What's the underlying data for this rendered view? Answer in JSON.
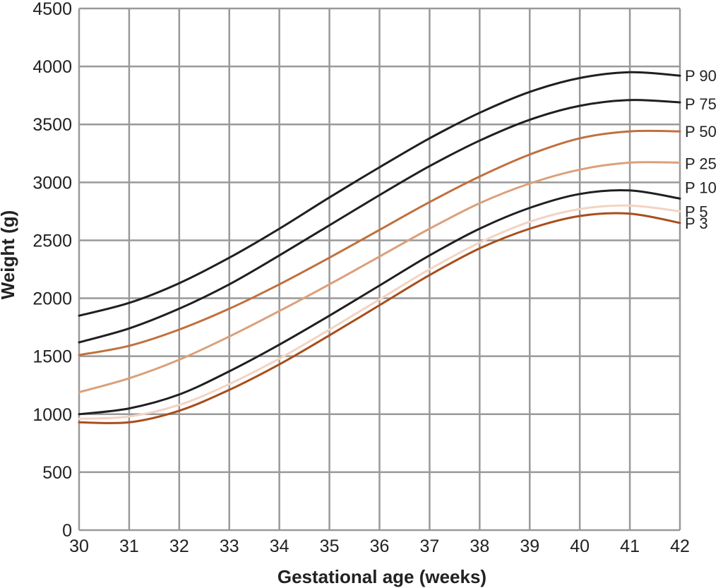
{
  "chart_data": {
    "type": "line",
    "title": "",
    "xlabel": "Gestational age (weeks)",
    "ylabel": "Weight (g)",
    "xlim": [
      30,
      42
    ],
    "ylim": [
      0,
      4500
    ],
    "x_ticks": [
      "30",
      "31",
      "32",
      "33",
      "34",
      "35",
      "36",
      "37",
      "38",
      "39",
      "40",
      "41",
      "42"
    ],
    "y_ticks": [
      "0",
      "500",
      "1000",
      "1500",
      "2000",
      "2500",
      "3000",
      "3500",
      "4000",
      "4500"
    ],
    "grid": true,
    "legend": "direct labels at right end of lines",
    "x": [
      30,
      31,
      32,
      33,
      34,
      35,
      36,
      37,
      38,
      39,
      40,
      41,
      42
    ],
    "series": [
      {
        "name": "P 90",
        "color": "#1f1f1f",
        "values": [
          1850,
          1960,
          2130,
          2350,
          2600,
          2870,
          3130,
          3380,
          3600,
          3780,
          3900,
          3950,
          3920
        ]
      },
      {
        "name": "P 75",
        "color": "#1f1f1f",
        "values": [
          1620,
          1740,
          1910,
          2120,
          2370,
          2630,
          2890,
          3140,
          3360,
          3540,
          3660,
          3710,
          3690
        ]
      },
      {
        "name": "P 50",
        "color": "#c0703e",
        "values": [
          1510,
          1590,
          1730,
          1910,
          2120,
          2350,
          2590,
          2830,
          3050,
          3240,
          3380,
          3440,
          3440
        ]
      },
      {
        "name": "P 25",
        "color": "#dba07a",
        "values": [
          1190,
          1310,
          1470,
          1670,
          1890,
          2120,
          2360,
          2600,
          2820,
          2990,
          3110,
          3170,
          3170
        ]
      },
      {
        "name": "P 10",
        "color": "#1f1f1f",
        "values": [
          1000,
          1050,
          1170,
          1370,
          1600,
          1850,
          2110,
          2370,
          2600,
          2780,
          2900,
          2930,
          2860
        ]
      },
      {
        "name": "P 5",
        "color": "#f3d3c2",
        "values": [
          960,
          980,
          1080,
          1260,
          1480,
          1730,
          1990,
          2250,
          2480,
          2660,
          2770,
          2800,
          2750
        ]
      },
      {
        "name": "P 3",
        "color": "#a84e1c",
        "values": [
          930,
          930,
          1030,
          1210,
          1430,
          1680,
          1940,
          2200,
          2430,
          2600,
          2710,
          2730,
          2650
        ]
      }
    ]
  }
}
